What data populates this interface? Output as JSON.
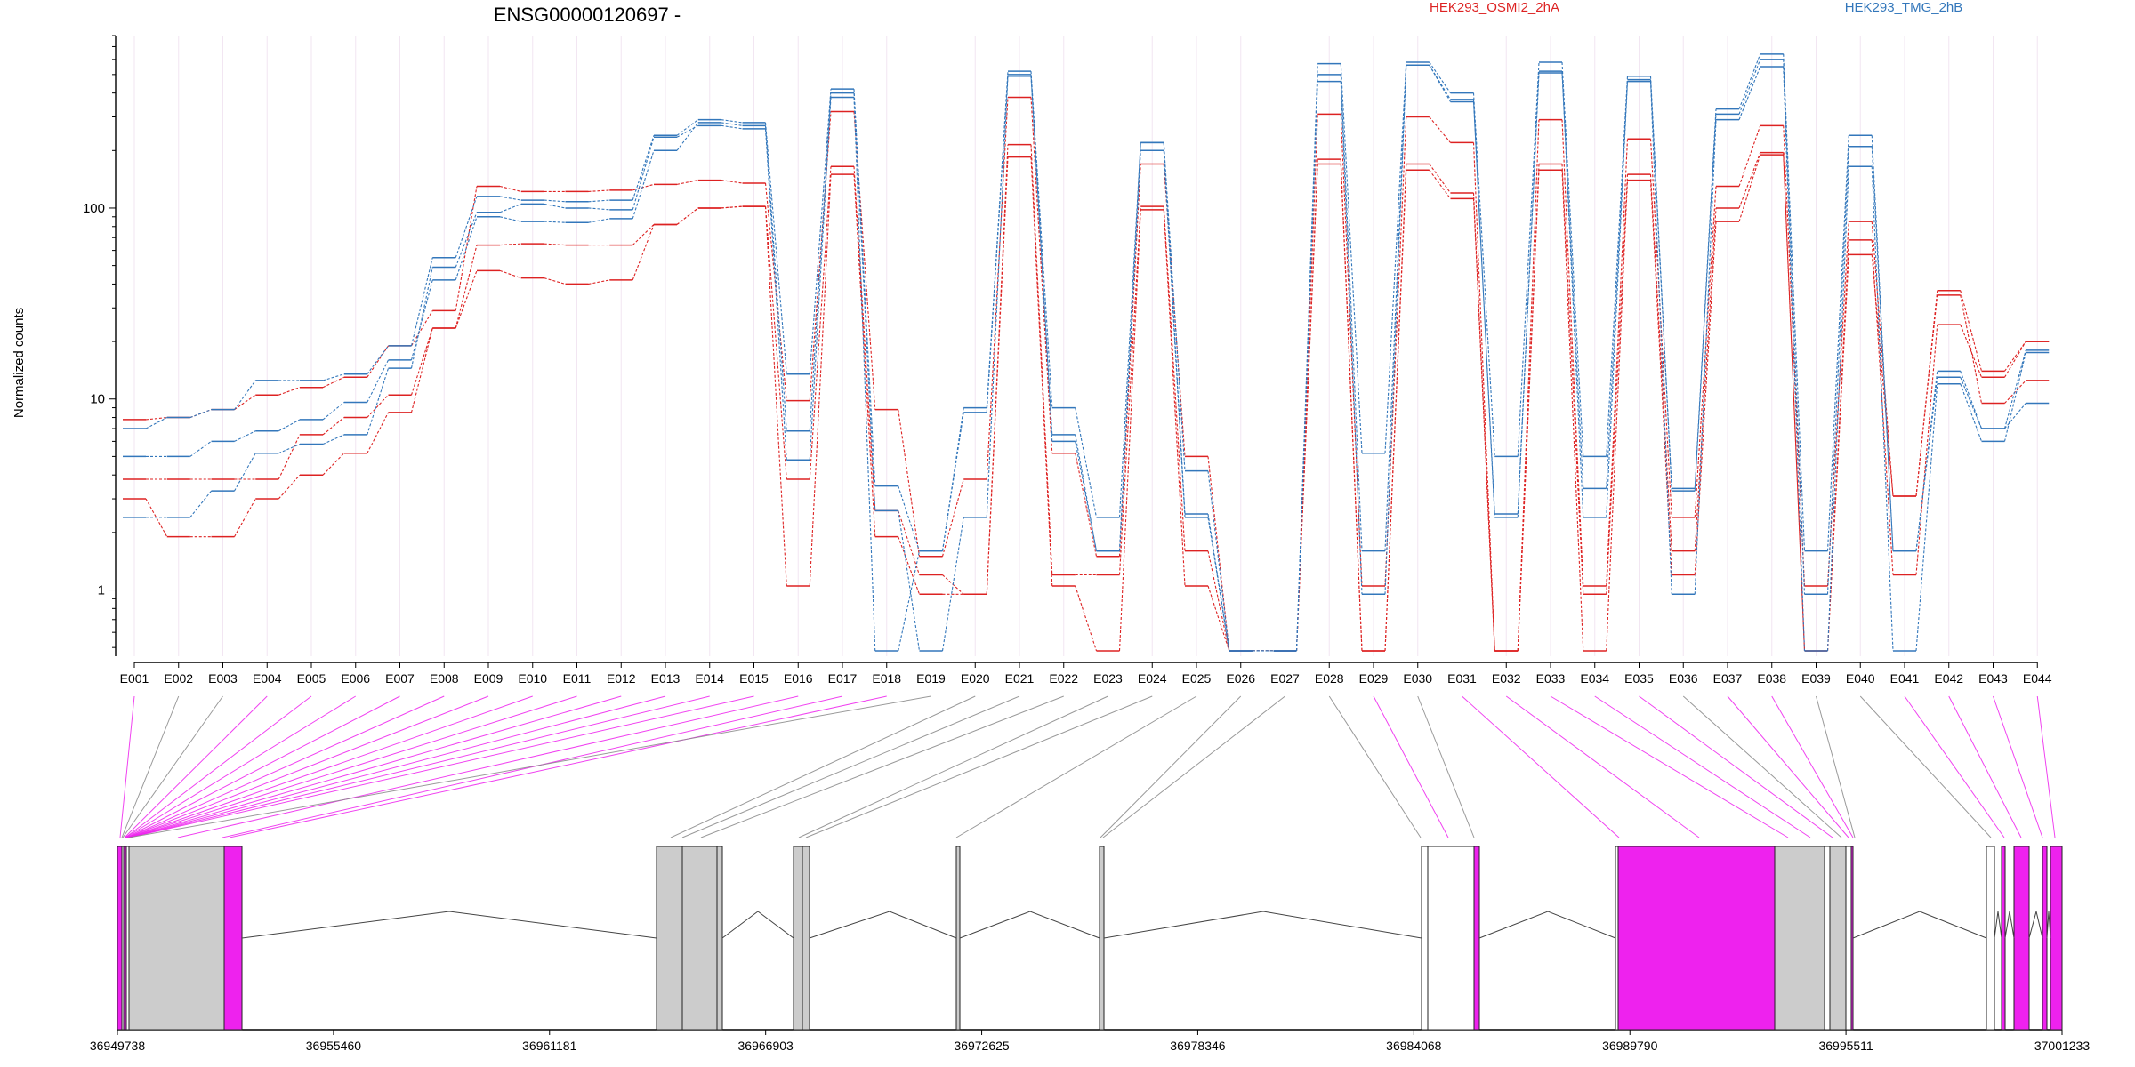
{
  "chart_data": {
    "type": "line",
    "title": "ENSG00000120697 -",
    "ylabel": "Normalized counts",
    "xlabel": "",
    "yscale": "log",
    "ylim": [
      0.45,
      800
    ],
    "yticks": [
      "1",
      "10",
      "100"
    ],
    "grid": "vertical",
    "legend": "top-right",
    "categories": [
      "E001",
      "E002",
      "E003",
      "E004",
      "E005",
      "E006",
      "E007",
      "E008",
      "E009",
      "E010",
      "E011",
      "E012",
      "E013",
      "E014",
      "E015",
      "E016",
      "E017",
      "E018",
      "E019",
      "E020",
      "E021",
      "E022",
      "E023",
      "E024",
      "E025",
      "E026",
      "E027",
      "E028",
      "E029",
      "E030",
      "E031",
      "E032",
      "E033",
      "E034",
      "E035",
      "E036",
      "E037",
      "E038",
      "E039",
      "E040",
      "E041",
      "E042",
      "E043",
      "E044"
    ],
    "exon_colors": [
      "#ee22ee",
      "#888888",
      "#888888",
      "#ee22ee",
      "#ee22ee",
      "#ee22ee",
      "#ee22ee",
      "#ee22ee",
      "#ee22ee",
      "#ee22ee",
      "#ee22ee",
      "#ee22ee",
      "#ee22ee",
      "#ee22ee",
      "#ee22ee",
      "#ee22ee",
      "#ee22ee",
      "#ee22ee",
      "#888888",
      "#888888",
      "#888888",
      "#888888",
      "#888888",
      "#888888",
      "#888888",
      "#888888",
      "#888888",
      "#888888",
      "#ee22ee",
      "#888888",
      "#ee22ee",
      "#ee22ee",
      "#ee22ee",
      "#ee22ee",
      "#ee22ee",
      "#888888",
      "#ee22ee",
      "#ee22ee",
      "#888888",
      "#888888",
      "#ee22ee",
      "#ee22ee",
      "#ee22ee",
      "#ee22ee"
    ],
    "groups": [
      {
        "name": "HEK293_OSMI2_2hA",
        "color": "#dd2222"
      },
      {
        "name": "HEK293_TMG_2hB",
        "color": "#3377bb"
      }
    ],
    "series": [
      {
        "group": 0,
        "values": [
          7.8,
          8,
          8.8,
          10.5,
          11.5,
          13,
          19,
          29,
          130,
          122,
          122,
          124,
          133,
          140,
          135,
          9.8,
          320,
          8.8,
          1.5,
          3.8,
          380,
          5.2,
          1.5,
          170,
          5,
          0.48,
          0.48,
          310,
          1.05,
          300,
          220,
          0.48,
          290,
          1.05,
          230,
          2.4,
          130,
          270,
          1.05,
          85,
          3.1,
          37,
          14,
          20
        ]
      },
      {
        "group": 0,
        "values": [
          3.8,
          3.8,
          3.8,
          3.8,
          6.5,
          8,
          10.5,
          23.5,
          64,
          65,
          64,
          64,
          82,
          100,
          102,
          3.8,
          165,
          2.6,
          1.2,
          0.95,
          215,
          1.2,
          1.2,
          102,
          1.6,
          0.48,
          0.48,
          180,
          0.48,
          170,
          120,
          0.48,
          170,
          0.95,
          150,
          1.6,
          100,
          195,
          0.48,
          68,
          1.2,
          24.5,
          13,
          20
        ]
      },
      {
        "group": 0,
        "values": [
          3,
          1.9,
          1.9,
          3,
          4,
          5.2,
          8.5,
          23.5,
          47,
          43,
          40,
          42,
          82,
          100,
          102,
          1.05,
          150,
          1.9,
          0.95,
          0.95,
          185,
          1.05,
          0.48,
          98,
          1.05,
          0.48,
          0.48,
          170,
          0.48,
          158,
          112,
          0.48,
          158,
          0.48,
          140,
          1.2,
          85,
          190,
          0.48,
          57,
          3.1,
          35,
          9.5,
          12.5
        ]
      },
      {
        "group": 1,
        "values": [
          7,
          8,
          8.8,
          12.5,
          12.5,
          13.5,
          19,
          55,
          115,
          110,
          108,
          110,
          240,
          290,
          280,
          13.5,
          420,
          3.5,
          1.6,
          9,
          520,
          9,
          2.4,
          220,
          4.2,
          0.48,
          0.48,
          570,
          5.2,
          580,
          400,
          5,
          580,
          5,
          490,
          3.4,
          330,
          640,
          1.6,
          240,
          1.6,
          14,
          7,
          18
        ]
      },
      {
        "group": 1,
        "values": [
          5,
          5,
          6,
          6.8,
          7.8,
          9.6,
          16,
          42,
          90,
          85,
          84,
          88,
          200,
          280,
          270,
          6.8,
          400,
          2.6,
          0.48,
          2.4,
          490,
          6.5,
          1.6,
          220,
          2.5,
          0.48,
          0.48,
          500,
          1.6,
          560,
          370,
          2.4,
          510,
          3.4,
          470,
          3.3,
          310,
          600,
          0.95,
          210,
          1.6,
          13,
          7,
          9.5
        ]
      },
      {
        "group": 1,
        "values": [
          2.4,
          2.4,
          3.3,
          5.2,
          5.8,
          6.5,
          14.5,
          49,
          95,
          105,
          100,
          98,
          235,
          270,
          260,
          4.8,
          380,
          0.48,
          1.6,
          8.5,
          500,
          6,
          1.6,
          200,
          2.4,
          0.48,
          0.48,
          460,
          0.95,
          560,
          360,
          2.5,
          520,
          2.4,
          460,
          0.95,
          290,
          550,
          0.48,
          165,
          0.48,
          12,
          6,
          17.5
        ]
      }
    ],
    "gene_coordinates": [
      "36949738",
      "36955460",
      "36961181",
      "36966903",
      "36972625",
      "36978346",
      "36984068",
      "36989790",
      "36995511",
      "37001233"
    ]
  }
}
